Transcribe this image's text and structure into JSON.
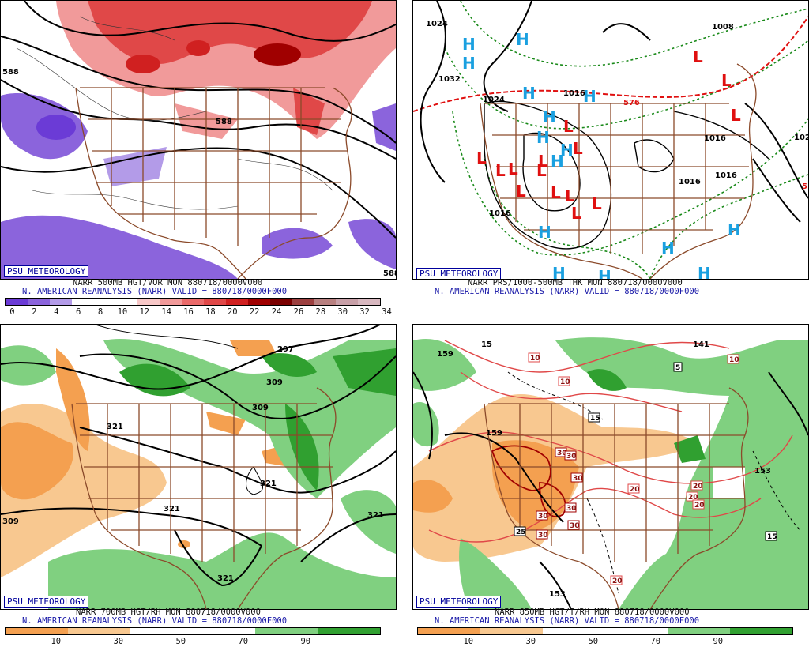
{
  "panels": [
    {
      "id": "p1",
      "brand": "PSU METEOROLOGY",
      "line1": "NARR 500MB HGT/VOR MON 880718/0000V000",
      "line2": "N. AMERICAN REANALYSIS (NARR) VALID = 880718/0000F000",
      "colorbar": {
        "ticks": [
          "0",
          "2",
          "4",
          "6",
          "8",
          "10",
          "12",
          "14",
          "16",
          "18",
          "20",
          "22",
          "24",
          "26",
          "28",
          "30",
          "32",
          "34"
        ],
        "colors": [
          "#6b3bd6",
          "#8b64dc",
          "#b39be8",
          "#ffffff",
          "#ffffff",
          "#ffffff",
          "#f8c8c8",
          "#f19a9a",
          "#ea6a6a",
          "#e04848",
          "#d02020",
          "#a00000",
          "#7a0000",
          "#9c4040",
          "#b88080",
          "#c8a0a8",
          "#d8b8c0"
        ]
      },
      "contour_labels": [
        "588",
        "588",
        "588"
      ]
    },
    {
      "id": "p2",
      "brand": "PSU METEOROLOGY",
      "line1": "NARR PRS/1000-500MB THK MON 880718/0000V000",
      "line2": "N. AMERICAN REANALYSIS (NARR) VALID = 880718/0000F000",
      "contour_labels": [
        "1024",
        "1032",
        "1024",
        "1008",
        "1016",
        "1016",
        "1016",
        "1016",
        "576",
        "102",
        "5"
      ],
      "high_symbol": "H",
      "low_symbol": "L"
    },
    {
      "id": "p3",
      "brand": "PSU METEOROLOGY",
      "line1": "NARR 700MB HGT/RH MON 880718/0000V000",
      "line2": "N. AMERICAN REANALYSIS (NARR) VALID = 880718/0000F000",
      "colorbar": {
        "ticks": [
          "10",
          "30",
          "50",
          "70",
          "90"
        ],
        "colors": [
          "#f4a050",
          "#f8c890",
          "#ffffff",
          "#ffffff",
          "#80d080",
          "#30a030"
        ]
      },
      "contour_labels": [
        "297",
        "309",
        "309",
        "321",
        "321",
        "321",
        "321",
        "321",
        "309"
      ]
    },
    {
      "id": "p4",
      "brand": "PSU METEOROLOGY",
      "line1": "NARR 850MB HGT/T/RH MON 880718/0000V000",
      "line2": "N. AMERICAN REANALYSIS (NARR) VALID = 880718/0000F000",
      "colorbar": {
        "ticks": [
          "10",
          "30",
          "50",
          "70",
          "90"
        ],
        "colors": [
          "#f4a050",
          "#f8c890",
          "#ffffff",
          "#ffffff",
          "#80d080",
          "#30a030"
        ]
      },
      "contour_labels": [
        "159",
        "153",
        "153",
        "15",
        "141",
        "5",
        "10",
        "10",
        "15",
        "20",
        "20",
        "20",
        "20",
        "20",
        "30",
        "30",
        "30",
        "30",
        "30",
        "30",
        "30",
        "25",
        "15",
        "15"
      ]
    }
  ]
}
